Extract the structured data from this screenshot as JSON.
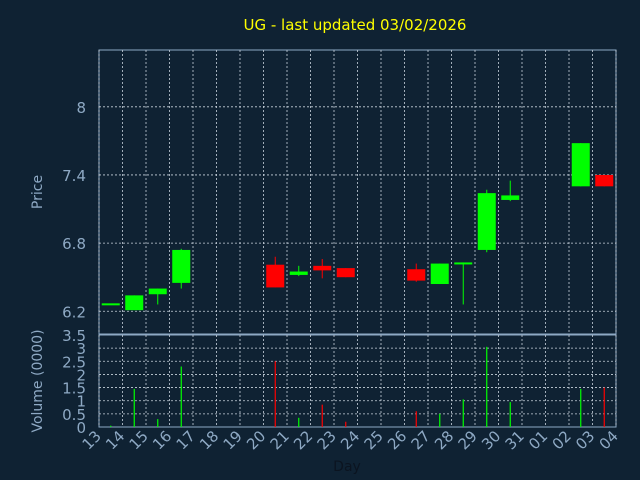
{
  "chart_data": {
    "type": "candlestick",
    "title": "UG - last updated 03/02/2026",
    "xlabel": "Day",
    "x_ticks": [
      "13",
      "14",
      "15",
      "16",
      "17",
      "18",
      "19",
      "20",
      "21",
      "22",
      "23",
      "24",
      "25",
      "26",
      "27",
      "28",
      "29",
      "30",
      "31",
      "01",
      "02",
      "03",
      "04"
    ],
    "price": {
      "ylabel": "Price",
      "yticks": [
        "6.2",
        "6.8",
        "7.4",
        "8"
      ],
      "ylim": [
        6.0,
        8.5
      ],
      "grid": true,
      "candles": [
        {
          "x": "13",
          "open": 6.27,
          "high": 6.27,
          "low": 6.27,
          "close": 6.27
        },
        {
          "x": "14",
          "open": 6.21,
          "high": 6.34,
          "low": 6.21,
          "close": 6.34
        },
        {
          "x": "15",
          "open": 6.35,
          "high": 6.4,
          "low": 6.26,
          "close": 6.4
        },
        {
          "x": "16",
          "open": 6.45,
          "high": 6.75,
          "low": 6.4,
          "close": 6.74
        },
        {
          "x": "20",
          "open": 6.61,
          "high": 6.68,
          "low": 6.41,
          "close": 6.41
        },
        {
          "x": "21",
          "open": 6.52,
          "high": 6.6,
          "low": 6.51,
          "close": 6.55
        },
        {
          "x": "22",
          "open": 6.6,
          "high": 6.66,
          "low": 6.49,
          "close": 6.56
        },
        {
          "x": "23",
          "open": 6.58,
          "high": 6.58,
          "low": 6.5,
          "close": 6.5
        },
        {
          "x": "26",
          "open": 6.57,
          "high": 6.62,
          "low": 6.46,
          "close": 6.47
        },
        {
          "x": "27",
          "open": 6.44,
          "high": 6.62,
          "low": 6.44,
          "close": 6.62
        },
        {
          "x": "28",
          "open": 6.62,
          "high": 6.63,
          "low": 6.26,
          "close": 6.63
        },
        {
          "x": "29",
          "open": 6.74,
          "high": 7.27,
          "low": 6.72,
          "close": 7.24
        },
        {
          "x": "30",
          "open": 7.18,
          "high": 7.35,
          "low": 7.17,
          "close": 7.22
        },
        {
          "x": "02",
          "open": 7.3,
          "high": 7.68,
          "low": 7.3,
          "close": 7.68
        },
        {
          "x": "03",
          "open": 7.4,
          "high": 7.4,
          "low": 7.3,
          "close": 7.3
        }
      ]
    },
    "volume": {
      "ylabel": "Volume (0000)",
      "yticks": [
        "0",
        "0.5",
        "1",
        "1.5",
        "2",
        "2.5",
        "3",
        "3.5"
      ],
      "ylim": [
        0,
        3.5
      ],
      "bars": [
        {
          "x": "13",
          "value": 0.05,
          "direction": "up"
        },
        {
          "x": "14",
          "value": 1.45,
          "direction": "up"
        },
        {
          "x": "15",
          "value": 0.3,
          "direction": "up"
        },
        {
          "x": "16",
          "value": 2.3,
          "direction": "up"
        },
        {
          "x": "20",
          "value": 2.5,
          "direction": "down"
        },
        {
          "x": "21",
          "value": 0.35,
          "direction": "up"
        },
        {
          "x": "22",
          "value": 0.85,
          "direction": "down"
        },
        {
          "x": "23",
          "value": 0.2,
          "direction": "down"
        },
        {
          "x": "26",
          "value": 0.6,
          "direction": "down"
        },
        {
          "x": "27",
          "value": 0.5,
          "direction": "up"
        },
        {
          "x": "28",
          "value": 1.05,
          "direction": "up"
        },
        {
          "x": "29",
          "value": 3.05,
          "direction": "up"
        },
        {
          "x": "30",
          "value": 0.95,
          "direction": "up"
        },
        {
          "x": "02",
          "value": 1.45,
          "direction": "up"
        },
        {
          "x": "03",
          "value": 1.5,
          "direction": "down"
        }
      ]
    },
    "colors": {
      "background": "#0f2233",
      "grid": "#c8d2dc",
      "axis": "#8ea9c4",
      "up": "#00ff00",
      "down": "#ff0000",
      "title": "#ffff00"
    }
  }
}
